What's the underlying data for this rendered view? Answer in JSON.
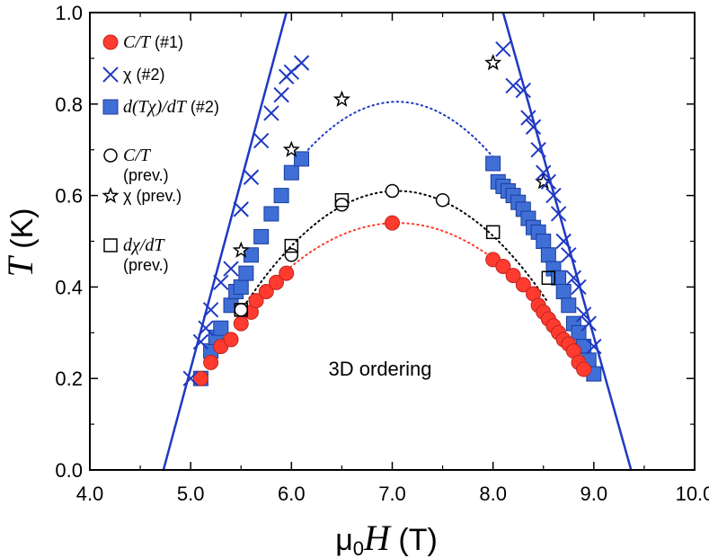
{
  "chart_data": {
    "type": "scatter",
    "title": "",
    "xlabel": {
      "prefix": "μ",
      "sub": "0",
      "italic": "H",
      "suffix": " (T)"
    },
    "ylabel": {
      "italic": "T",
      "suffix": " (K)"
    },
    "xlim": [
      4.0,
      10.0
    ],
    "ylim": [
      0.0,
      1.0
    ],
    "x_ticks": [
      "4.0",
      "5.0",
      "6.0",
      "7.0",
      "8.0",
      "9.0",
      "10.0"
    ],
    "y_ticks": [
      "0.0",
      "0.2",
      "0.4",
      "0.6",
      "0.8",
      "1.0"
    ],
    "grid": false,
    "legend_position": "top-left",
    "annotation": "3D ordering",
    "series": [
      {
        "key": "ct1",
        "legend": {
          "italic": "C/T",
          "text": " (#1)"
        },
        "marker": "circle",
        "color": "#ff3b30",
        "edge": "#ff3b30",
        "points": [
          [
            5.1,
            0.2
          ],
          [
            5.2,
            0.235
          ],
          [
            5.3,
            0.27
          ],
          [
            5.4,
            0.285
          ],
          [
            5.5,
            0.32
          ],
          [
            5.6,
            0.345
          ],
          [
            5.65,
            0.37
          ],
          [
            5.75,
            0.39
          ],
          [
            5.85,
            0.41
          ],
          [
            5.95,
            0.43
          ],
          [
            7.0,
            0.54
          ],
          [
            8.0,
            0.46
          ],
          [
            8.1,
            0.445
          ],
          [
            8.2,
            0.425
          ],
          [
            8.3,
            0.405
          ],
          [
            8.4,
            0.385
          ],
          [
            8.45,
            0.36
          ],
          [
            8.5,
            0.345
          ],
          [
            8.55,
            0.33
          ],
          [
            8.6,
            0.315
          ],
          [
            8.65,
            0.3
          ],
          [
            8.7,
            0.285
          ],
          [
            8.75,
            0.275
          ],
          [
            8.8,
            0.26
          ],
          [
            8.85,
            0.235
          ],
          [
            8.9,
            0.22
          ]
        ]
      },
      {
        "key": "chi2",
        "legend": {
          "italic": "",
          "text": "χ (#2)"
        },
        "marker": "x",
        "color": "#1f39c4",
        "edge": "#1f39c4",
        "points": [
          [
            5.0,
            0.2
          ],
          [
            5.1,
            0.28
          ],
          [
            5.15,
            0.31
          ],
          [
            5.2,
            0.35
          ],
          [
            5.3,
            0.41
          ],
          [
            5.4,
            0.44
          ],
          [
            5.5,
            0.57
          ],
          [
            5.6,
            0.64
          ],
          [
            5.7,
            0.72
          ],
          [
            5.8,
            0.78
          ],
          [
            5.9,
            0.82
          ],
          [
            5.95,
            0.86
          ],
          [
            6.0,
            0.87
          ],
          [
            6.1,
            0.89
          ],
          [
            8.1,
            0.92
          ],
          [
            8.2,
            0.84
          ],
          [
            8.3,
            0.83
          ],
          [
            8.35,
            0.77
          ],
          [
            8.4,
            0.75
          ],
          [
            8.45,
            0.7
          ],
          [
            8.5,
            0.65
          ],
          [
            8.55,
            0.63
          ],
          [
            8.6,
            0.6
          ],
          [
            8.65,
            0.56
          ],
          [
            8.7,
            0.5
          ],
          [
            8.75,
            0.47
          ],
          [
            8.8,
            0.42
          ],
          [
            8.85,
            0.4
          ],
          [
            8.9,
            0.34
          ],
          [
            8.95,
            0.32
          ],
          [
            9.0,
            0.27
          ]
        ]
      },
      {
        "key": "dtchi2",
        "legend": {
          "italic": "d(Tχ)/dT",
          "text": " (#2)"
        },
        "marker": "square",
        "color": "#3f6fd6",
        "edge": "#1a3c9c",
        "points": [
          [
            5.1,
            0.2
          ],
          [
            5.2,
            0.26
          ],
          [
            5.25,
            0.29
          ],
          [
            5.3,
            0.31
          ],
          [
            5.4,
            0.36
          ],
          [
            5.45,
            0.39
          ],
          [
            5.5,
            0.4
          ],
          [
            5.55,
            0.43
          ],
          [
            5.6,
            0.47
          ],
          [
            5.7,
            0.51
          ],
          [
            5.8,
            0.56
          ],
          [
            5.9,
            0.6
          ],
          [
            6.0,
            0.65
          ],
          [
            6.1,
            0.68
          ],
          [
            8.0,
            0.67
          ],
          [
            8.05,
            0.63
          ],
          [
            8.1,
            0.62
          ],
          [
            8.15,
            0.61
          ],
          [
            8.2,
            0.6
          ],
          [
            8.25,
            0.585
          ],
          [
            8.3,
            0.57
          ],
          [
            8.35,
            0.55
          ],
          [
            8.4,
            0.53
          ],
          [
            8.45,
            0.52
          ],
          [
            8.5,
            0.5
          ],
          [
            8.55,
            0.47
          ],
          [
            8.6,
            0.44
          ],
          [
            8.65,
            0.42
          ],
          [
            8.7,
            0.39
          ],
          [
            8.75,
            0.36
          ],
          [
            8.8,
            0.32
          ],
          [
            8.85,
            0.3
          ],
          [
            8.9,
            0.27
          ],
          [
            8.95,
            0.24
          ],
          [
            9.0,
            0.21
          ]
        ]
      },
      {
        "key": "ctprev",
        "legend": {
          "italic": "C/T",
          "text": "(prev.)"
        },
        "marker": "open-circle",
        "color": "none",
        "edge": "#000000",
        "points": [
          [
            5.5,
            0.35
          ],
          [
            6.0,
            0.47
          ],
          [
            6.5,
            0.58
          ],
          [
            7.0,
            0.61
          ],
          [
            7.5,
            0.59
          ]
        ]
      },
      {
        "key": "chiprev",
        "legend": {
          "italic": "",
          "text": "χ (prev.)"
        },
        "marker": "open-star",
        "color": "none",
        "edge": "#000000",
        "points": [
          [
            5.5,
            0.48
          ],
          [
            6.0,
            0.7
          ],
          [
            6.5,
            0.81
          ],
          [
            8.0,
            0.89
          ],
          [
            8.5,
            0.63
          ]
        ]
      },
      {
        "key": "dchiprev",
        "legend": {
          "italic": "dχ/dT",
          "text": "(prev.)"
        },
        "marker": "open-square",
        "color": "none",
        "edge": "#000000",
        "points": [
          [
            5.5,
            0.35
          ],
          [
            6.0,
            0.49
          ],
          [
            6.5,
            0.59
          ],
          [
            8.0,
            0.52
          ],
          [
            8.55,
            0.42
          ]
        ]
      }
    ],
    "lines": [
      {
        "key": "blue-left",
        "style": "solid",
        "color": "#1f39c4",
        "points": [
          [
            4.73,
            0.0
          ],
          [
            5.95,
            1.0
          ]
        ]
      },
      {
        "key": "blue-right",
        "style": "solid",
        "color": "#1f39c4",
        "points": [
          [
            8.1,
            1.0
          ],
          [
            9.37,
            0.0
          ]
        ]
      },
      {
        "key": "dotted-red",
        "style": "dotted",
        "color": "#ff3b30",
        "vertex": [
          7.05,
          0.54
        ],
        "range": [
          5.95,
          8.05
        ],
        "a": 0.086
      },
      {
        "key": "dotted-black",
        "style": "dotted",
        "color": "#000000",
        "vertex": [
          7.05,
          0.61
        ],
        "range": [
          5.5,
          8.55
        ],
        "a": 0.109
      },
      {
        "key": "dotted-blue",
        "style": "dotted",
        "color": "#1f39c4",
        "vertex": [
          7.05,
          0.805
        ],
        "range": [
          6.1,
          8.0
        ],
        "a": 0.134
      }
    ]
  }
}
